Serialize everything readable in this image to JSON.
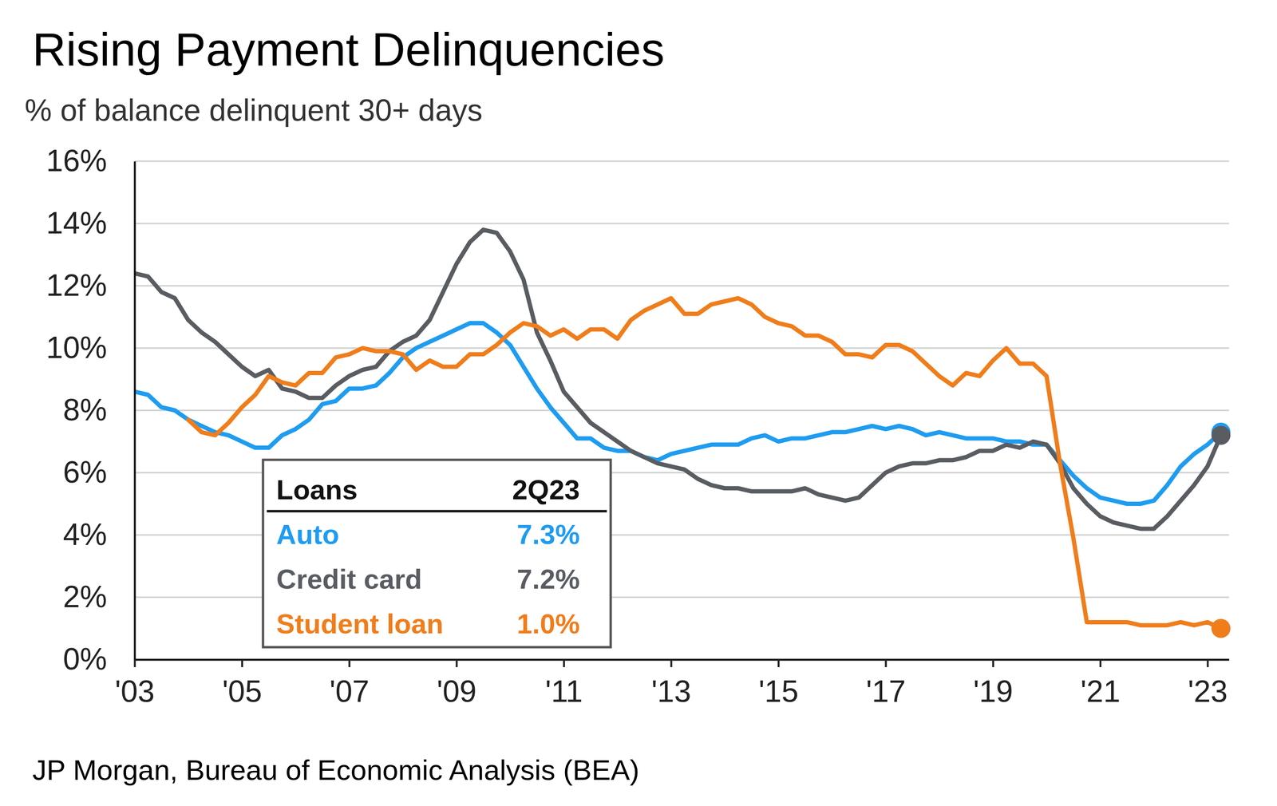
{
  "chart_data": {
    "type": "line",
    "title": "Rising Payment Delinquencies",
    "subtitle": "% of balance delinquent 30+ days",
    "source": "JP Morgan, Bureau of Economic Analysis (BEA)",
    "x": [
      2003,
      2003.25,
      2003.5,
      2003.75,
      2004,
      2004.25,
      2004.5,
      2004.75,
      2005,
      2005.25,
      2005.5,
      2005.75,
      2006,
      2006.25,
      2006.5,
      2006.75,
      2007,
      2007.25,
      2007.5,
      2007.75,
      2008,
      2008.25,
      2008.5,
      2008.75,
      2009,
      2009.25,
      2009.5,
      2009.75,
      2010,
      2010.25,
      2010.5,
      2010.75,
      2011,
      2011.25,
      2011.5,
      2011.75,
      2012,
      2012.25,
      2012.5,
      2012.75,
      2013,
      2013.25,
      2013.5,
      2013.75,
      2014,
      2014.25,
      2014.5,
      2014.75,
      2015,
      2015.25,
      2015.5,
      2015.75,
      2016,
      2016.25,
      2016.5,
      2016.75,
      2017,
      2017.25,
      2017.5,
      2017.75,
      2018,
      2018.25,
      2018.5,
      2018.75,
      2019,
      2019.25,
      2019.5,
      2019.75,
      2020,
      2020.25,
      2020.5,
      2020.75,
      2021,
      2021.25,
      2021.5,
      2021.75,
      2022,
      2022.25,
      2022.5,
      2022.75,
      2023,
      2023.25
    ],
    "series": [
      {
        "name": "Auto",
        "color": "#1f9cf0",
        "marker": "end",
        "values": [
          8.6,
          8.5,
          8.1,
          8.0,
          7.7,
          7.5,
          7.3,
          7.2,
          7.0,
          6.8,
          6.8,
          7.2,
          7.4,
          7.7,
          8.2,
          8.3,
          8.7,
          8.7,
          8.8,
          9.2,
          9.7,
          10.0,
          10.2,
          10.4,
          10.6,
          10.8,
          10.8,
          10.5,
          10.1,
          9.4,
          8.7,
          8.1,
          7.6,
          7.1,
          7.1,
          6.8,
          6.7,
          6.7,
          6.5,
          6.4,
          6.6,
          6.7,
          6.8,
          6.9,
          6.9,
          6.9,
          7.1,
          7.2,
          7.0,
          7.1,
          7.1,
          7.2,
          7.3,
          7.3,
          7.4,
          7.5,
          7.4,
          7.5,
          7.4,
          7.2,
          7.3,
          7.2,
          7.1,
          7.1,
          7.1,
          7.0,
          7.0,
          6.9,
          6.9,
          6.4,
          5.9,
          5.5,
          5.2,
          5.1,
          5.0,
          5.0,
          5.1,
          5.6,
          6.2,
          6.6,
          6.9,
          7.3
        ]
      },
      {
        "name": "Credit card",
        "color": "#595d62",
        "marker": "end",
        "values": [
          12.4,
          12.3,
          11.8,
          11.6,
          10.9,
          10.5,
          10.2,
          9.8,
          9.4,
          9.1,
          9.3,
          8.7,
          8.6,
          8.4,
          8.4,
          8.8,
          9.1,
          9.3,
          9.4,
          9.9,
          10.2,
          10.4,
          10.9,
          11.8,
          12.7,
          13.4,
          13.8,
          13.7,
          13.1,
          12.2,
          10.5,
          9.6,
          8.6,
          8.1,
          7.6,
          7.3,
          7.0,
          6.7,
          6.5,
          6.3,
          6.2,
          6.1,
          5.8,
          5.6,
          5.5,
          5.5,
          5.4,
          5.4,
          5.4,
          5.4,
          5.5,
          5.3,
          5.2,
          5.1,
          5.2,
          5.6,
          6.0,
          6.2,
          6.3,
          6.3,
          6.4,
          6.4,
          6.5,
          6.7,
          6.7,
          6.9,
          6.8,
          7.0,
          6.9,
          6.3,
          5.5,
          5.0,
          4.6,
          4.4,
          4.3,
          4.2,
          4.2,
          4.6,
          5.1,
          5.6,
          6.2,
          7.2
        ]
      },
      {
        "name": "Student loan",
        "color": "#f07d1b",
        "marker": "end",
        "values": [
          null,
          null,
          null,
          null,
          7.7,
          7.3,
          7.2,
          7.6,
          8.1,
          8.5,
          9.1,
          8.9,
          8.8,
          9.2,
          9.2,
          9.7,
          9.8,
          10.0,
          9.9,
          9.9,
          9.8,
          9.3,
          9.6,
          9.4,
          9.4,
          9.8,
          9.8,
          10.1,
          10.5,
          10.8,
          10.7,
          10.4,
          10.6,
          10.3,
          10.6,
          10.6,
          10.3,
          10.9,
          11.2,
          11.4,
          11.6,
          11.1,
          11.1,
          11.4,
          11.5,
          11.6,
          11.4,
          11.0,
          10.8,
          10.7,
          10.4,
          10.4,
          10.2,
          9.8,
          9.8,
          9.7,
          10.1,
          10.1,
          9.9,
          9.5,
          9.1,
          8.8,
          9.2,
          9.1,
          9.6,
          10.0,
          9.5,
          9.5,
          9.1,
          6.3,
          3.9,
          1.2,
          1.2,
          1.2,
          1.2,
          1.1,
          1.1,
          1.1,
          1.2,
          1.1,
          1.2,
          1.0
        ]
      }
    ],
    "xlim": [
      2003,
      2023.4
    ],
    "xticks": [
      {
        "value": 2003,
        "label": "'03"
      },
      {
        "value": 2005,
        "label": "'05"
      },
      {
        "value": 2007,
        "label": "'07"
      },
      {
        "value": 2009,
        "label": "'09"
      },
      {
        "value": 2011,
        "label": "'11"
      },
      {
        "value": 2013,
        "label": "'13"
      },
      {
        "value": 2015,
        "label": "'15"
      },
      {
        "value": 2017,
        "label": "'17"
      },
      {
        "value": 2019,
        "label": "'19"
      },
      {
        "value": 2021,
        "label": "'21"
      },
      {
        "value": 2023,
        "label": "'23"
      }
    ],
    "ylim": [
      0,
      16
    ],
    "yticks": [
      {
        "value": 0,
        "label": "0%"
      },
      {
        "value": 2,
        "label": "2%"
      },
      {
        "value": 4,
        "label": "4%"
      },
      {
        "value": 6,
        "label": "6%"
      },
      {
        "value": 8,
        "label": "8%"
      },
      {
        "value": 10,
        "label": "10%"
      },
      {
        "value": 12,
        "label": "12%"
      },
      {
        "value": 14,
        "label": "14%"
      },
      {
        "value": 16,
        "label": "16%"
      }
    ],
    "grid": true,
    "table": {
      "header": [
        "Loans",
        "2Q23"
      ],
      "values": [
        "7.3%",
        "7.2%",
        "1.0%"
      ]
    }
  }
}
